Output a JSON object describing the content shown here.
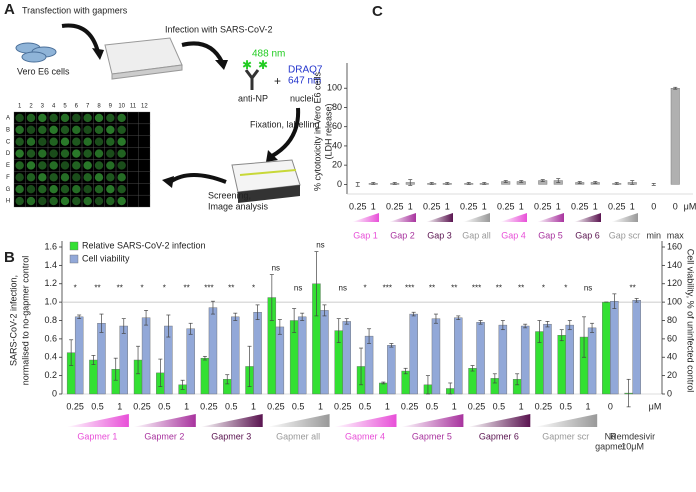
{
  "panel_labels": [
    "A",
    "B",
    "C"
  ],
  "panel_a": {
    "transfection": "Transfection with gapmers",
    "cells": "Vero E6 cells",
    "infection": "Infection with SARS-CoV-2",
    "wavelength": "488 nm",
    "antibody": "anti-NP",
    "plus": "+",
    "dye": [
      "DRAQ7",
      "647 nm"
    ],
    "nuclei": "nuclei",
    "fixation": "Fixation, labelling",
    "screening": [
      "Screening,",
      "Image analysis"
    ],
    "columns": [
      "1",
      "2",
      "3",
      "4",
      "5",
      "6",
      "7",
      "8",
      "9",
      "10",
      "11",
      "12"
    ],
    "rows": [
      "A",
      "B",
      "C",
      "D",
      "E",
      "F",
      "G",
      "H"
    ]
  },
  "chart_data": [
    {
      "type": "bar",
      "ylabel": [
        "SARS-CoV-2 infection,",
        "normalised to no-gapmer control"
      ],
      "y2label": [
        "Cell viability, % of uninfected control"
      ],
      "ylim": [
        0,
        1.6
      ],
      "yticks": [
        0,
        0.2,
        0.4,
        0.6,
        0.8,
        {
          "value": 1,
          "label": "1.0"
        },
        1.2,
        1.4,
        1.6
      ],
      "y2lim": [
        0,
        160
      ],
      "y2ticks": [
        0,
        20,
        40,
        60,
        80,
        100,
        120,
        140,
        160
      ],
      "hline": 1,
      "legend": "top-left",
      "unit": "μM",
      "groups": [
        {
          "name": [
            "Gapmer 1"
          ],
          "color": "#e84fd8",
          "doses": [
            "0.25",
            "0.5",
            "1"
          ]
        },
        {
          "name": [
            "Gapmer 2"
          ],
          "color": "#a8339e",
          "doses": [
            "0.25",
            "0.5",
            "1"
          ]
        },
        {
          "name": [
            "Gapmer 3"
          ],
          "color": "#5a1450",
          "doses": [
            "0.25",
            "0.5",
            "1"
          ]
        },
        {
          "name": [
            "Gapmer all"
          ],
          "color": "#999999",
          "doses": [
            "0.25",
            "0.5",
            "1"
          ]
        },
        {
          "name": [
            "Gapmer 4"
          ],
          "color": "#e84fd8",
          "doses": [
            "0.25",
            "0.5",
            "1"
          ]
        },
        {
          "name": [
            "Gapmer 5"
          ],
          "color": "#a8339e",
          "doses": [
            "0.25",
            "0.5",
            "1"
          ]
        },
        {
          "name": [
            "Gapmer 6"
          ],
          "color": "#5a1450",
          "doses": [
            "0.25",
            "0.5",
            "1"
          ]
        },
        {
          "name": [
            "Gapmer scr"
          ],
          "color": "#999999",
          "doses": [
            "0.25",
            "0.5",
            "1"
          ]
        },
        {
          "name": [
            "No",
            "gapmer"
          ],
          "color": "#333333",
          "doses": [
            "0"
          ]
        },
        {
          "name": [
            "Remdesivir",
            "10μM"
          ],
          "color": "#333333",
          "doses": [
            null
          ]
        }
      ],
      "series": [
        {
          "name": "Relative SARS-CoV-2 infection",
          "color": "#33e033",
          "values": [
            0.45,
            0.37,
            0.27,
            0.37,
            0.23,
            0.1,
            0.39,
            0.16,
            0.3,
            1.05,
            0.8,
            1.2,
            0.69,
            0.3,
            0.12,
            0.25,
            0.1,
            0.06,
            0.28,
            0.17,
            0.16,
            0.68,
            0.64,
            0.62,
            1.0,
            0.01
          ],
          "errors": [
            0.14,
            0.05,
            0.12,
            0.15,
            0.15,
            0.05,
            0.02,
            0.05,
            0.22,
            0.25,
            0.13,
            0.35,
            0.13,
            0.2,
            0.01,
            0.03,
            0.1,
            0.06,
            0.03,
            0.05,
            0.06,
            0.12,
            0.06,
            0.22,
            0,
            0.15
          ]
        },
        {
          "name": "Cell viability",
          "color": "#92a8d8",
          "axis": "y2",
          "values": [
            84,
            77,
            74,
            83,
            74,
            71,
            94,
            84,
            89,
            73,
            84,
            91,
            79,
            63,
            53,
            87,
            82,
            83,
            78,
            75,
            74,
            76,
            75,
            72,
            101,
            102
          ],
          "errors": [
            2,
            10,
            8,
            8,
            12,
            6,
            7,
            4,
            8,
            8,
            4,
            6,
            3,
            8,
            2,
            2,
            5,
            2,
            2,
            5,
            2,
            3,
            5,
            5,
            8,
            2
          ]
        }
      ],
      "significance": [
        "*",
        "**",
        "**",
        "*",
        "*",
        "**",
        "***",
        "**",
        "*",
        "ns",
        "ns",
        "ns",
        "ns",
        "*",
        "***",
        "***",
        "**",
        "**",
        "***",
        "**",
        "**",
        "*",
        "*",
        "ns",
        null,
        "**"
      ]
    },
    {
      "type": "bar",
      "ylabel": [
        "% cytotoxicity in Vero E6 cells",
        "(LDH release)"
      ],
      "ylim": [
        -10,
        120
      ],
      "yticks": [
        0,
        20,
        40,
        60,
        80,
        100
      ],
      "unit": "μM",
      "groups": [
        {
          "name": [
            "Gap 1"
          ],
          "color": "#e84fd8",
          "doses": [
            "0.25",
            "1"
          ]
        },
        {
          "name": [
            "Gap 2"
          ],
          "color": "#a8339e",
          "doses": [
            "0.25",
            "1"
          ]
        },
        {
          "name": [
            "Gap 3"
          ],
          "color": "#5a1450",
          "doses": [
            "0.25",
            "1"
          ]
        },
        {
          "name": [
            "Gap all"
          ],
          "color": "#999999",
          "doses": [
            "0.25",
            "1"
          ]
        },
        {
          "name": [
            "Gap 4"
          ],
          "color": "#e84fd8",
          "doses": [
            "0.25",
            "1"
          ]
        },
        {
          "name": [
            "Gap 5"
          ],
          "color": "#a8339e",
          "doses": [
            "0.25",
            "1"
          ]
        },
        {
          "name": [
            "Gap 6"
          ],
          "color": "#5a1450",
          "doses": [
            "0.25",
            "1"
          ]
        },
        {
          "name": [
            "Gap scr"
          ],
          "color": "#999999",
          "doses": [
            "0.25",
            "1"
          ]
        },
        {
          "name": [
            "min"
          ],
          "color": "#333333",
          "doses": [
            "0"
          ]
        },
        {
          "name": [
            "max"
          ],
          "color": "#333333",
          "doses": [
            "0"
          ]
        }
      ],
      "series": [
        {
          "color": "#b0b0b0",
          "values": [
            0,
            1,
            1,
            2,
            1,
            1,
            1,
            1,
            3,
            3,
            4,
            4,
            2,
            2,
            1,
            2,
            0,
            100
          ],
          "errors": [
            2,
            1,
            1,
            3,
            1,
            1,
            1,
            1,
            1,
            1,
            1,
            2,
            1,
            1,
            1,
            2,
            1,
            1
          ]
        }
      ]
    }
  ]
}
